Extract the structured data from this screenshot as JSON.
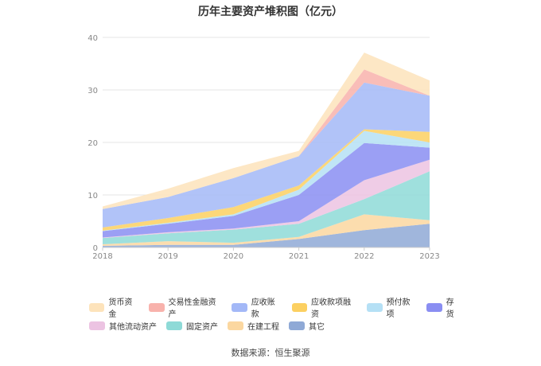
{
  "chart_data": {
    "type": "area",
    "stacked": true,
    "title": "历年主要资产堆积图（亿元）",
    "x": [
      "2018",
      "2019",
      "2020",
      "2021",
      "2022",
      "2023"
    ],
    "ylim": [
      0,
      40
    ],
    "yticks": [
      0,
      10,
      20,
      30,
      40
    ],
    "grid": true,
    "legend_position": "bottom",
    "series": [
      {
        "name": "其它",
        "color": "#8fa9d6",
        "values": [
          0.3,
          0.5,
          0.5,
          1.6,
          3.3,
          4.5
        ]
      },
      {
        "name": "在建工程",
        "color": "#fbd7a0",
        "values": [
          0.3,
          0.7,
          0.4,
          0.4,
          3.0,
          0.7
        ]
      },
      {
        "name": "固定资产",
        "color": "#8edad7",
        "values": [
          1.2,
          1.5,
          2.5,
          2.5,
          2.9,
          9.3
        ]
      },
      {
        "name": "其他流动资产",
        "color": "#ecc3e2",
        "values": [
          0.1,
          0.2,
          0.2,
          0.5,
          3.6,
          2.2
        ]
      },
      {
        "name": "存货",
        "color": "#8a8ef2",
        "values": [
          1.2,
          1.6,
          2.4,
          5.0,
          7.1,
          2.3
        ]
      },
      {
        "name": "预付款项",
        "color": "#b5e0f5",
        "values": [
          0.1,
          0.2,
          0.3,
          1.0,
          2.3,
          1.0
        ]
      },
      {
        "name": "应收款项融资",
        "color": "#fcd061",
        "values": [
          0.6,
          0.9,
          1.4,
          0.8,
          0.3,
          2.0
        ]
      },
      {
        "name": "应收账款",
        "color": "#a3b8f7",
        "values": [
          3.5,
          4.0,
          5.5,
          5.6,
          8.9,
          6.9
        ]
      },
      {
        "name": "交易性金融资产",
        "color": "#f8b2ac",
        "values": [
          0,
          0,
          0,
          0,
          2.5,
          0
        ]
      },
      {
        "name": "货币资金",
        "color": "#fde3bb",
        "values": [
          0.5,
          1.6,
          1.9,
          1.0,
          3.2,
          2.9
        ]
      }
    ]
  },
  "legend_rows": [
    [
      {
        "label": "货币资金",
        "color": "#fde3bb"
      },
      {
        "label": "交易性金融资产",
        "color": "#f8b2ac"
      },
      {
        "label": "应收账款",
        "color": "#a3b8f7"
      },
      {
        "label": "应收款项融资",
        "color": "#fcd061"
      },
      {
        "label": "预付款项",
        "color": "#b5e0f5"
      },
      {
        "label": "存货",
        "color": "#8a8ef2"
      }
    ],
    [
      {
        "label": "其他流动资产",
        "color": "#ecc3e2"
      },
      {
        "label": "固定资产",
        "color": "#8edad7"
      },
      {
        "label": "在建工程",
        "color": "#fbd7a0"
      },
      {
        "label": "其它",
        "color": "#8fa9d6"
      }
    ]
  ],
  "source": "数据来源：恒生聚源"
}
